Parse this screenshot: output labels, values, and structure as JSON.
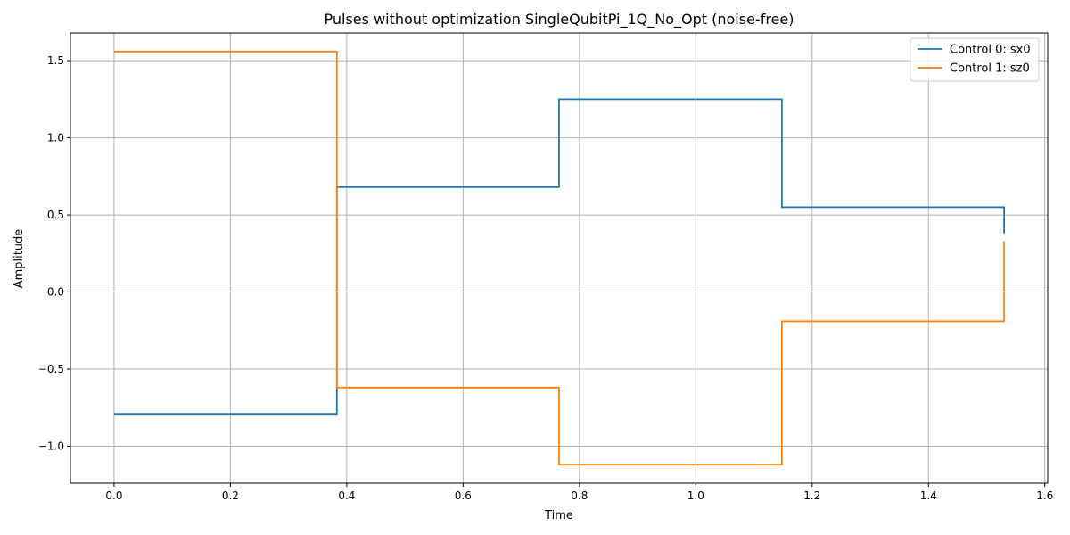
{
  "chart_data": {
    "type": "line",
    "step": true,
    "title": "Pulses without optimization SingleQubitPi_1Q_No_Opt (noise-free)",
    "xlabel": "Time",
    "ylabel": "Amplitude",
    "xlim": [
      -0.075,
      1.605
    ],
    "ylim": [
      -1.24,
      1.68
    ],
    "x_ticks": [
      0.0,
      0.2,
      0.4,
      0.6,
      0.8,
      1.0,
      1.2,
      1.4,
      1.6
    ],
    "x_tick_labels": [
      "0.0",
      "0.2",
      "0.4",
      "0.6",
      "0.8",
      "1.0",
      "1.2",
      "1.4",
      "1.6"
    ],
    "y_ticks": [
      -1.0,
      -0.5,
      0.0,
      0.5,
      1.0,
      1.5
    ],
    "y_tick_labels": [
      "−1.0",
      "−0.5",
      "0.0",
      "0.5",
      "1.0",
      "1.5"
    ],
    "grid": true,
    "legend_position": "top-right",
    "series": [
      {
        "name": "Control 0: sx0",
        "color": "#1f77b4",
        "x": [
          0.0,
          0.383,
          0.383,
          0.765,
          0.765,
          1.148,
          1.148,
          1.53,
          1.53
        ],
        "y": [
          -0.79,
          -0.79,
          0.68,
          0.68,
          1.25,
          1.25,
          0.55,
          0.55,
          0.38
        ]
      },
      {
        "name": "Control 1: sz0",
        "color": "#ff7f0e",
        "x": [
          0.0,
          0.383,
          0.383,
          0.765,
          0.765,
          1.148,
          1.148,
          1.53,
          1.53
        ],
        "y": [
          1.56,
          1.56,
          -0.62,
          -0.62,
          -1.12,
          -1.12,
          -0.19,
          -0.19,
          0.33
        ]
      }
    ]
  }
}
